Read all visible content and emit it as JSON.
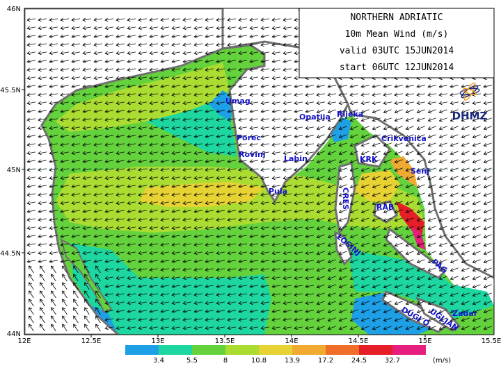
{
  "title_box": {
    "line1": "NORTHERN ADRIATIC",
    "line2": "10m Mean Wind (m/s)",
    "line3": "valid 03UTC 15JUN2014",
    "line4": "start 06UTC 12JUN2014"
  },
  "logo": {
    "text": "DHMZ",
    "icon": "dhmz-swirl-logo"
  },
  "axes": {
    "lat_labels": [
      "46N",
      "45.5N",
      "45N",
      "44.5N",
      "44N"
    ],
    "lon_labels": [
      "12E",
      "12.5E",
      "13E",
      "13.5E",
      "14E",
      "14.5E",
      "15E",
      "15.5E"
    ],
    "reference_latitude": "45N",
    "reference_line_style": "dotted"
  },
  "places": [
    {
      "name": "Umag"
    },
    {
      "name": "Porec"
    },
    {
      "name": "Rovinj"
    },
    {
      "name": "Opatija"
    },
    {
      "name": "Rijeka"
    },
    {
      "name": "Crikvenica"
    },
    {
      "name": "Labin"
    },
    {
      "name": "KRK"
    },
    {
      "name": "Senj"
    },
    {
      "name": "Pula"
    },
    {
      "name": "CRES"
    },
    {
      "name": "RAB"
    },
    {
      "name": "LOSINJ"
    },
    {
      "name": "PAG"
    },
    {
      "name": "Zadar"
    },
    {
      "name": "UGLJAN"
    },
    {
      "name": "DUGI O."
    }
  ],
  "legend": {
    "unit": "(m/s)",
    "ticks": [
      "3.4",
      "5.5",
      "8",
      "10.8",
      "13.9",
      "17.2",
      "24.5",
      "32.7"
    ],
    "colors": [
      "#1ea0e6",
      "#1ed7a0",
      "#64d23c",
      "#aadc32",
      "#e6d232",
      "#f0aa32",
      "#f06e28",
      "#e61e28",
      "#e61e7d"
    ]
  },
  "colors": {
    "land": "#ffffff",
    "coast": "#707070",
    "arrow": "#000000",
    "frame": "#000000"
  }
}
